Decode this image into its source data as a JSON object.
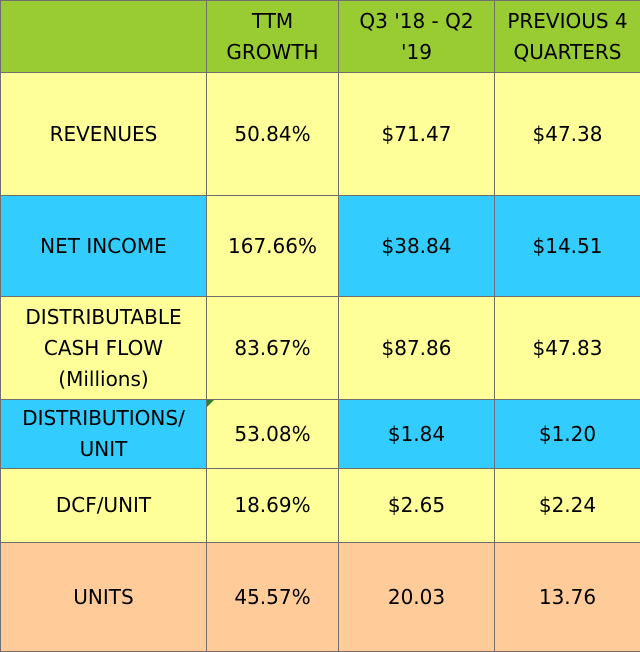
{
  "colors": {
    "header": "#99cc33",
    "yellow": "#ffff99",
    "blue": "#33ccff",
    "peach": "#ffcc99",
    "border": "#6f6f6f"
  },
  "header": {
    "col0": "",
    "col1": "TTM\nGROWTH",
    "col2": "Q3 '18 - Q2\n'19",
    "col3": "PREVIOUS 4\nQUARTERS"
  },
  "rows": [
    {
      "label": "REVENUES",
      "ttm_growth": "50.84%",
      "current": "$71.47",
      "previous": "$47.38"
    },
    {
      "label": "NET INCOME",
      "ttm_growth": "167.66%",
      "current": "$38.84",
      "previous": "$14.51"
    },
    {
      "label": "DISTRIBUTABLE\nCASH FLOW\n(Millions)",
      "ttm_growth": "83.67%",
      "current": "$87.86",
      "previous": "$47.83"
    },
    {
      "label": "DISTRIBUTIONS/\nUNIT",
      "ttm_growth": "53.08%",
      "current": "$1.84",
      "previous": "$1.20"
    },
    {
      "label": "DCF/UNIT",
      "ttm_growth": "18.69%",
      "current": "$2.65",
      "previous": "$2.24"
    },
    {
      "label": "UNITS",
      "ttm_growth": "45.57%",
      "current": "20.03",
      "previous": "13.76"
    }
  ]
}
